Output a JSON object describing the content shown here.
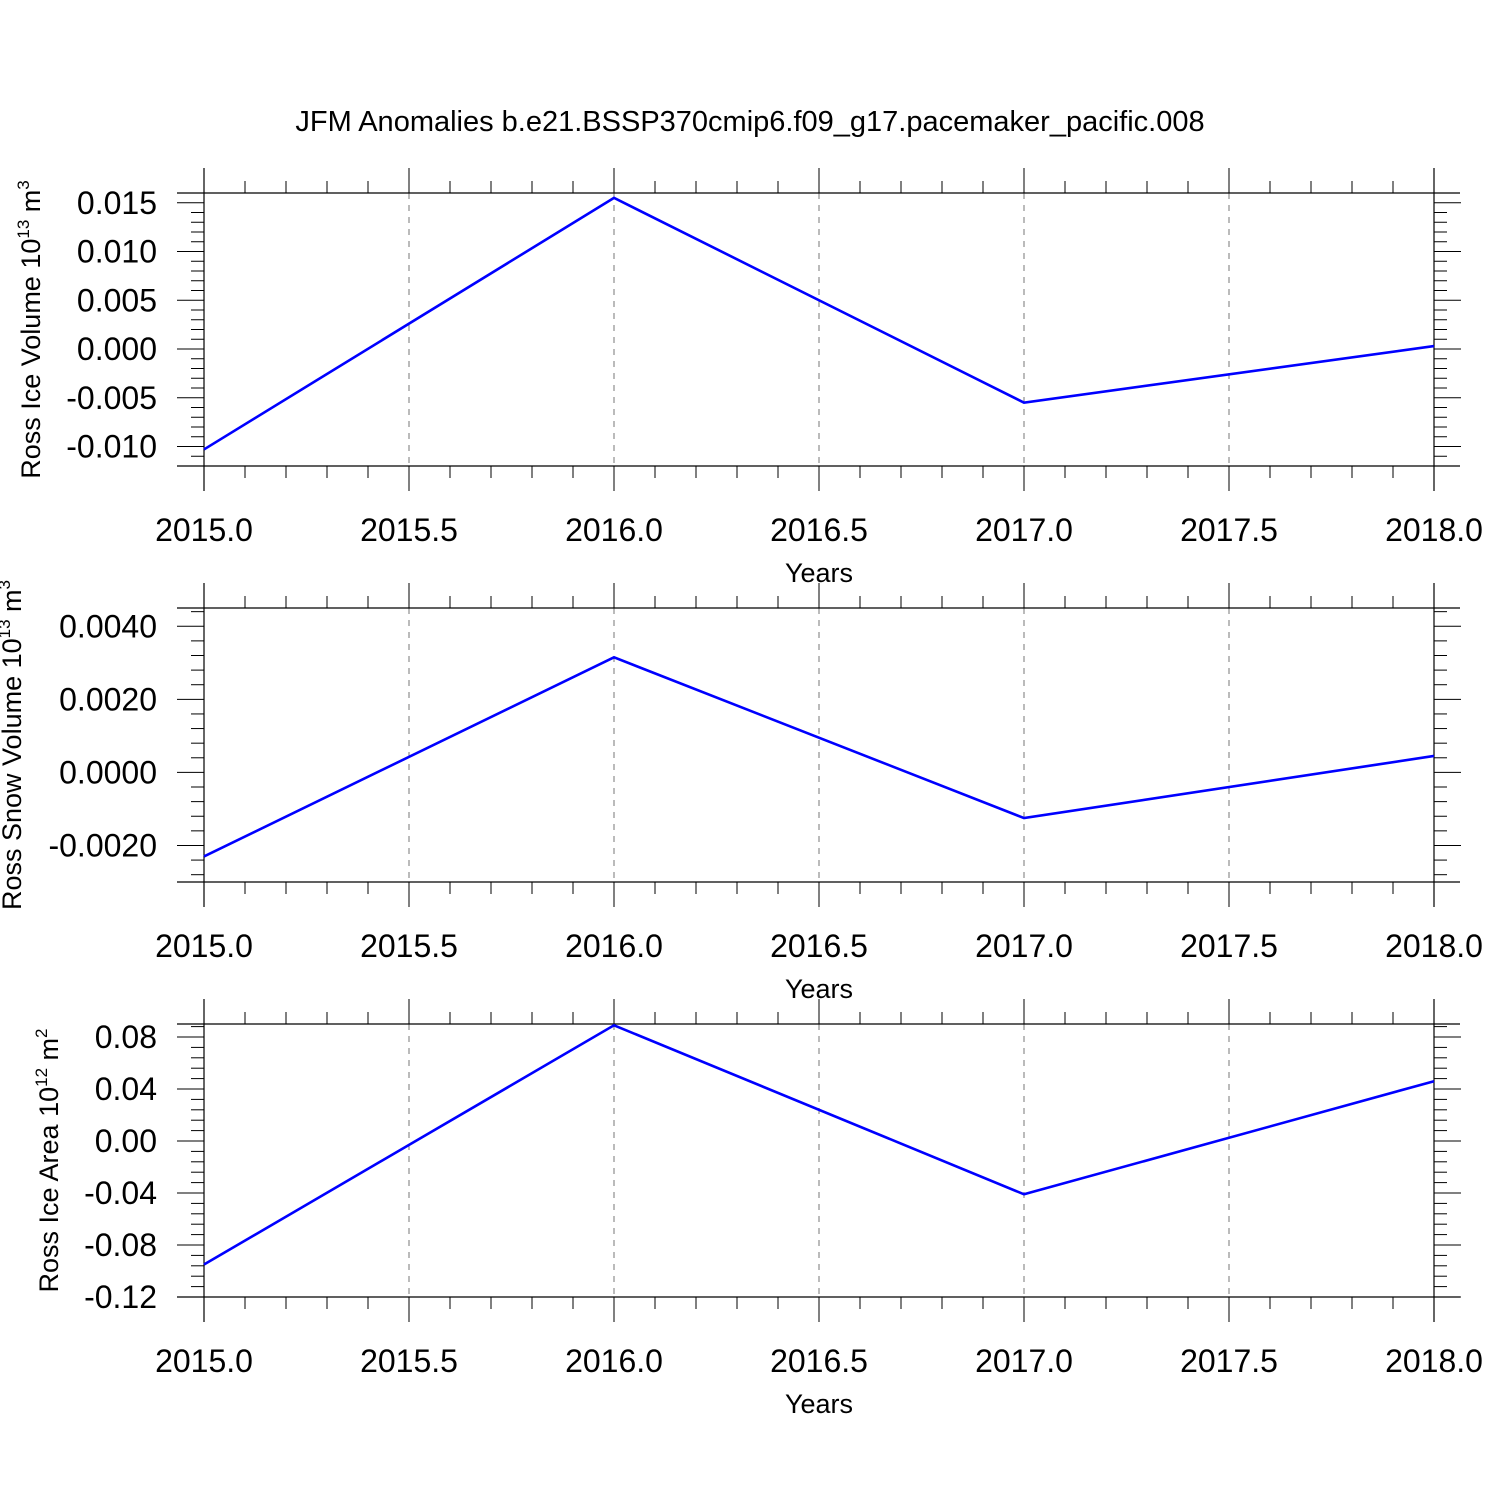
{
  "title": "JFM Anomalies b.e21.BSSP370cmip6.f09_g17.pacemaker_pacific.008",
  "colors": {
    "series": "#0000ff",
    "axes": "#000000",
    "grid": "#777777"
  },
  "chart_data": [
    {
      "type": "line",
      "xlabel": "Years",
      "ylabel": {
        "text": "Ross Ice Volume 10",
        "exp": "13",
        "unit_text": " m",
        "unit_exp": "3"
      },
      "x": [
        2015,
        2016,
        2017,
        2018
      ],
      "values": [
        -0.0103,
        0.0155,
        -0.0055,
        0.0003
      ],
      "xlim": [
        2015,
        2018
      ],
      "ylim": [
        -0.012,
        0.016
      ],
      "xticks": [
        "2015.0",
        "2015.5",
        "2016.0",
        "2016.5",
        "2017.0",
        "2017.5",
        "2018.0"
      ],
      "yticks": [
        "-0.010",
        "-0.005",
        "0.000",
        "0.005",
        "0.010",
        "0.015"
      ],
      "grid": "vertical dashed at major x ticks"
    },
    {
      "type": "line",
      "xlabel": "Years",
      "ylabel": {
        "text": "Ross Snow Volume 10",
        "exp": "13",
        "unit_text": " m",
        "unit_exp": "3"
      },
      "x": [
        2015,
        2016,
        2017,
        2018
      ],
      "values": [
        -0.0023,
        0.00315,
        -0.00125,
        0.00045
      ],
      "xlim": [
        2015,
        2018
      ],
      "ylim": [
        -0.003,
        0.0045
      ],
      "xticks": [
        "2015.0",
        "2015.5",
        "2016.0",
        "2016.5",
        "2017.0",
        "2017.5",
        "2018.0"
      ],
      "yticks": [
        "-0.0020",
        "0.0000",
        "0.0020",
        "0.0040"
      ],
      "grid": "vertical dashed at major x ticks"
    },
    {
      "type": "line",
      "xlabel": "Years",
      "ylabel": {
        "text": "Ross Ice Area 10",
        "exp": "12",
        "unit_text": " m",
        "unit_exp": "2"
      },
      "x": [
        2015,
        2016,
        2017,
        2018
      ],
      "values": [
        -0.095,
        0.089,
        -0.041,
        0.046
      ],
      "xlim": [
        2015,
        2018
      ],
      "ylim": [
        -0.12,
        0.09
      ],
      "xticks": [
        "2015.0",
        "2015.5",
        "2016.0",
        "2016.5",
        "2017.0",
        "2017.5",
        "2018.0"
      ],
      "yticks": [
        "-0.12",
        "-0.08",
        "-0.04",
        "0.00",
        "0.04",
        "0.08"
      ],
      "grid": "vertical dashed at major x ticks"
    }
  ]
}
